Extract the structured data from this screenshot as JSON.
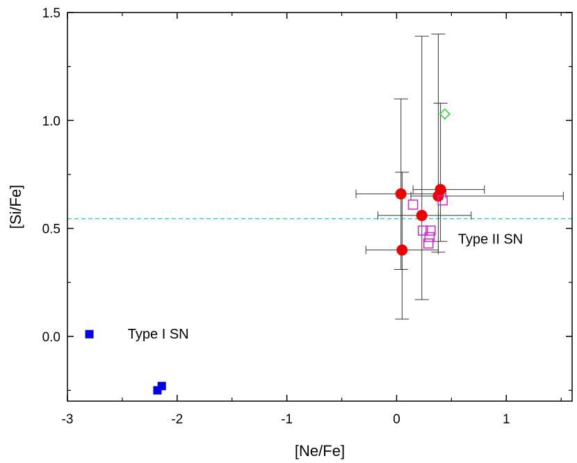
{
  "chart_data": {
    "type": "scatter",
    "xlabel": "[Ne/Fe]",
    "ylabel": "[Si/Fe]",
    "xlim": [
      -3,
      1.6
    ],
    "ylim": [
      -0.3,
      1.5
    ],
    "x_ticks": [
      {
        "value": -3,
        "label": "-3"
      },
      {
        "value": -2,
        "label": "-2"
      },
      {
        "value": -1,
        "label": "-1"
      },
      {
        "value": 0,
        "label": "0"
      },
      {
        "value": 1,
        "label": "1"
      }
    ],
    "y_ticks": [
      {
        "value": 0.0,
        "label": "0.0"
      },
      {
        "value": 0.5,
        "label": "0.5"
      },
      {
        "value": 1.0,
        "label": "1.0"
      },
      {
        "value": 1.5,
        "label": "1.5"
      }
    ],
    "reference_line": {
      "y": 0.545,
      "color": "#22cccc",
      "style": "dashed"
    },
    "annotations": [
      {
        "text": "Type I SN",
        "x": -2.45,
        "y": -0.01
      },
      {
        "text": "Type II SN",
        "x": 0.56,
        "y": 0.43
      }
    ],
    "series": [
      {
        "name": "type-i-sn",
        "marker": "filled-square",
        "color": "#0000ee",
        "points": [
          {
            "x": -2.8,
            "y": 0.01
          },
          {
            "x": -2.18,
            "y": -0.25
          },
          {
            "x": -2.14,
            "y": -0.23
          }
        ]
      },
      {
        "name": "red-circles",
        "marker": "filled-circle",
        "color": "#ee0000",
        "points": [
          {
            "x": 0.04,
            "y": 0.66,
            "xerr": [
              0.41,
              0.41
            ],
            "yerr": [
              0.35,
              0.44
            ]
          },
          {
            "x": 0.05,
            "y": 0.4,
            "xerr": [
              0.33,
              0.33
            ],
            "yerr": [
              0.32,
              0.36
            ]
          },
          {
            "x": 0.23,
            "y": 0.56,
            "xerr": [
              0.4,
              0.45
            ],
            "yerr": [
              0.39,
              0.83
            ]
          },
          {
            "x": 0.38,
            "y": 0.65,
            "xerr": [
              0.25,
              1.14
            ],
            "yerr": [
              0.26,
              0.75
            ]
          },
          {
            "x": 0.4,
            "y": 0.68,
            "xerr": [
              0.25,
              0.4
            ],
            "yerr": [
              0.24,
              0.4
            ]
          }
        ]
      },
      {
        "name": "magenta-squares",
        "marker": "open-square",
        "color": "#dd22dd",
        "points": [
          {
            "x": 0.15,
            "y": 0.61
          },
          {
            "x": 0.24,
            "y": 0.49
          },
          {
            "x": 0.29,
            "y": 0.43
          },
          {
            "x": 0.3,
            "y": 0.46
          },
          {
            "x": 0.31,
            "y": 0.49
          },
          {
            "x": 0.42,
            "y": 0.63
          }
        ]
      },
      {
        "name": "green-diamond",
        "marker": "open-diamond",
        "color": "#22dd22",
        "points": [
          {
            "x": 0.44,
            "y": 1.03
          }
        ]
      }
    ]
  }
}
